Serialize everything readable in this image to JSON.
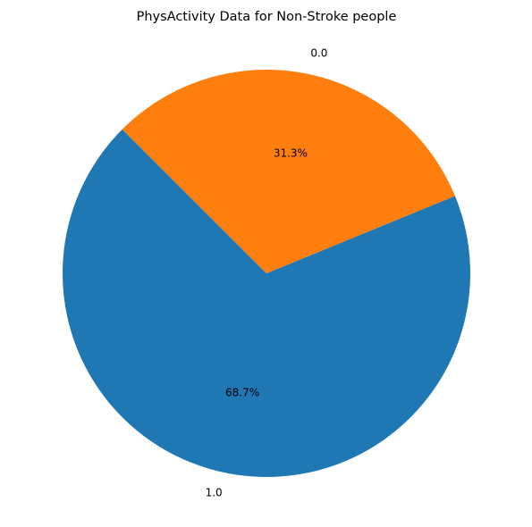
{
  "chart_data": {
    "type": "pie",
    "title": "PhysActivity Data for Non-Stroke people",
    "labels": [
      "1.0",
      "0.0"
    ],
    "values": [
      68.7,
      31.3
    ],
    "value_labels": [
      "68.7%",
      "31.3%"
    ],
    "colors": [
      "#1f77b4",
      "#ff7f0e"
    ],
    "start_angle_deg": 135,
    "direction": "counterclockwise"
  }
}
